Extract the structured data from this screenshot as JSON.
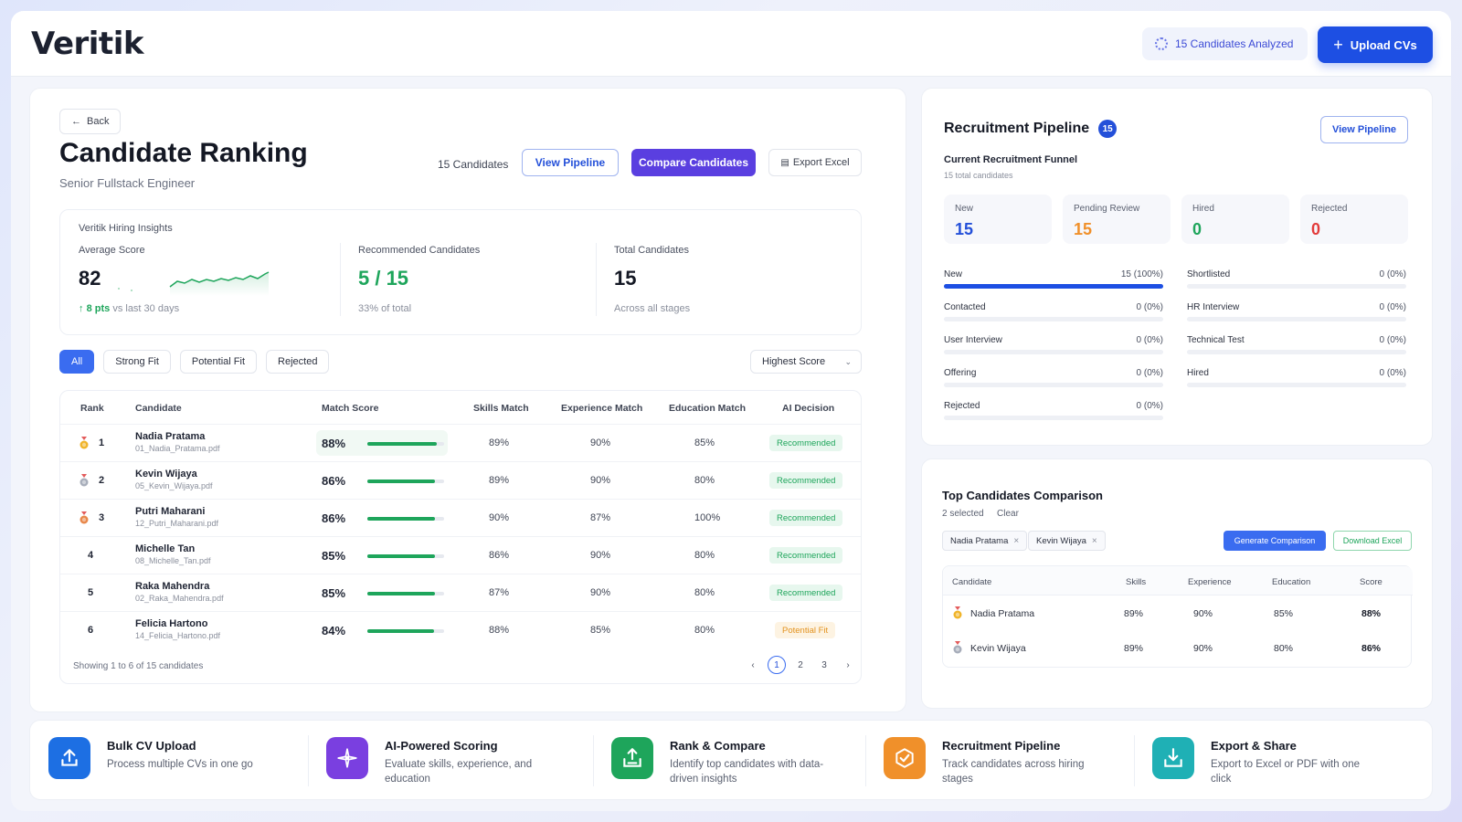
{
  "header": {
    "logo": "Veritik",
    "analyzed_label": "15 Candidates Analyzed",
    "upload_label": "Upload CVs"
  },
  "ranking": {
    "back_label": "Back",
    "title": "Candidate Ranking",
    "subtitle": "Senior Fullstack Engineer",
    "count_label": "15 Candidates",
    "view_pipeline": "View Pipeline",
    "compare": "Compare Candidates",
    "export": "Export Excel"
  },
  "insights": {
    "title": "Veritik Hiring Insights",
    "avg_label": "Average Score",
    "avg_value": "82",
    "avg_trend": "8 pts",
    "avg_trend_suffix": "vs last 30 days",
    "rec_label": "Recommended Candidates",
    "rec_value": "5 / 15",
    "rec_sub": "33% of total",
    "total_label": "Total Candidates",
    "total_value": "15",
    "total_sub": "Across all stages"
  },
  "filters": [
    "All",
    "Strong Fit",
    "Potential Fit",
    "Rejected"
  ],
  "sort": {
    "value": "Highest Score"
  },
  "table": {
    "headers": [
      "Rank",
      "Candidate",
      "Match Score",
      "Skills Match",
      "Experience Match",
      "Education Match",
      "AI Decision"
    ],
    "rows": [
      {
        "rank": "1",
        "medal": "gold",
        "name": "Nadia Pratama",
        "file": "01_Nadia_Pratama.pdf",
        "score": "88%",
        "score_fill": 0.88,
        "skills": "89%",
        "experience": "90%",
        "education": "85%",
        "decision": "Recommended",
        "type": "rec"
      },
      {
        "rank": "2",
        "medal": "silver",
        "name": "Kevin Wijaya",
        "file": "05_Kevin_Wijaya.pdf",
        "score": "86%",
        "score_fill": 0.86,
        "skills": "89%",
        "experience": "90%",
        "education": "80%",
        "decision": "Recommended",
        "type": "rec"
      },
      {
        "rank": "3",
        "medal": "bronze",
        "name": "Putri Maharani",
        "file": "12_Putri_Maharani.pdf",
        "score": "86%",
        "score_fill": 0.86,
        "skills": "90%",
        "experience": "87%",
        "education": "100%",
        "decision": "Recommended",
        "type": "rec"
      },
      {
        "rank": "4",
        "medal": "",
        "name": "Michelle Tan",
        "file": "08_Michelle_Tan.pdf",
        "score": "85%",
        "score_fill": 0.85,
        "skills": "86%",
        "experience": "90%",
        "education": "80%",
        "decision": "Recommended",
        "type": "rec"
      },
      {
        "rank": "5",
        "medal": "",
        "name": "Raka Mahendra",
        "file": "02_Raka_Mahendra.pdf",
        "score": "85%",
        "score_fill": 0.85,
        "skills": "87%",
        "experience": "90%",
        "education": "80%",
        "decision": "Recommended",
        "type": "rec"
      },
      {
        "rank": "6",
        "medal": "",
        "name": "Felicia Hartono",
        "file": "14_Felicia_Hartono.pdf",
        "score": "84%",
        "score_fill": 0.84,
        "skills": "88%",
        "experience": "85%",
        "education": "80%",
        "decision": "Potential Fit",
        "type": "pot"
      }
    ],
    "footer": "Showing 1 to 6 of 15 candidates",
    "pages": [
      "1",
      "2",
      "3"
    ]
  },
  "pipeline": {
    "title": "Recruitment Pipeline",
    "count": "15",
    "view_label": "View Pipeline",
    "funnel_title": "Current Recruitment Funnel",
    "funnel_sub": "15 total candidates",
    "stats": [
      {
        "label": "New",
        "value": "15",
        "color": "#2450d9"
      },
      {
        "label": "Pending Review",
        "value": "15",
        "color": "#f0902a"
      },
      {
        "label": "Hired",
        "value": "0",
        "color": "#1ea55b"
      },
      {
        "label": "Rejected",
        "value": "0",
        "color": "#e23b3b"
      }
    ],
    "stages_left": [
      {
        "name": "New",
        "value": "15 (100%)",
        "fill": 1.0
      },
      {
        "name": "Contacted",
        "value": "0 (0%)",
        "fill": 0
      },
      {
        "name": "User Interview",
        "value": "0 (0%)",
        "fill": 0
      },
      {
        "name": "Offering",
        "value": "0 (0%)",
        "fill": 0
      },
      {
        "name": "Rejected",
        "value": "0 (0%)",
        "fill": 0
      }
    ],
    "stages_right": [
      {
        "name": "Shortlisted",
        "value": "0 (0%)",
        "fill": 0
      },
      {
        "name": "HR Interview",
        "value": "0 (0%)",
        "fill": 0
      },
      {
        "name": "Technical Test",
        "value": "0 (0%)",
        "fill": 0
      },
      {
        "name": "Hired",
        "value": "0 (0%)",
        "fill": 0
      }
    ]
  },
  "comparison": {
    "title": "Top Candidates Comparison",
    "selected": "2 selected",
    "clear": "Clear",
    "tags": [
      "Nadia Pratama",
      "Kevin Wijaya"
    ],
    "generate": "Generate Comparison",
    "download": "Download Excel",
    "headers": [
      "Candidate",
      "Skills",
      "Experience",
      "Education",
      "Score"
    ],
    "rows": [
      {
        "medal": "gold",
        "name": "Nadia Pratama",
        "skills": "89%",
        "experience": "90%",
        "education": "85%",
        "score": "88%"
      },
      {
        "medal": "silver",
        "name": "Kevin Wijaya",
        "skills": "89%",
        "experience": "90%",
        "education": "80%",
        "score": "86%"
      }
    ]
  },
  "features": [
    {
      "icon": "upload-icon",
      "color": "#1d6fe3",
      "title": "Bulk CV Upload",
      "desc": "Process multiple CVs in one go"
    },
    {
      "icon": "ai-sparkle-icon",
      "color": "#7a3fe0",
      "title": "AI-Powered Scoring",
      "desc": "Evaluate skills, experience, and education"
    },
    {
      "icon": "rank-icon",
      "color": "#1ea55b",
      "title": "Rank & Compare",
      "desc": "Identify top candidates with data-driven insights"
    },
    {
      "icon": "pipeline-icon",
      "color": "#f0902a",
      "title": "Recruitment Pipeline",
      "desc": "Track candidates across hiring stages"
    },
    {
      "icon": "export-icon",
      "color": "#1fb0b5",
      "title": "Export & Share",
      "desc": "Export to Excel or PDF with one click"
    }
  ]
}
